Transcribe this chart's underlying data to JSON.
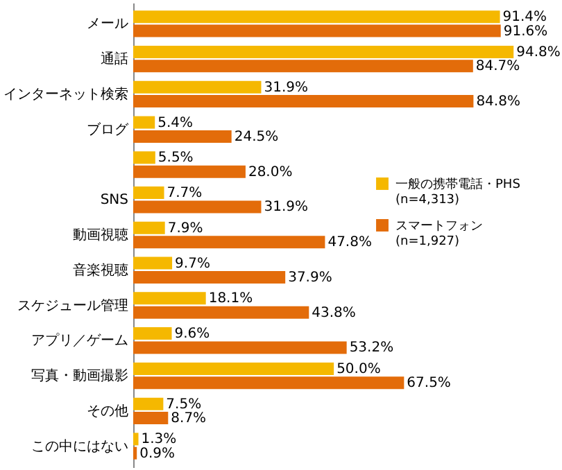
{
  "chart_data": {
    "type": "bar",
    "orientation": "horizontal",
    "categories": [
      "メール",
      "通話",
      "インターネット検索",
      "ブログ",
      null,
      "SNS",
      "動画視聴",
      "音楽視聴",
      "スケジュール管理",
      "アプリ／ゲーム",
      "写真・動画撮影",
      "その他",
      "この中にはない"
    ],
    "series": [
      {
        "name": "一般の携帯電話・PHS\n(n=4,313)",
        "color": "#f5b800",
        "values": [
          91.4,
          94.8,
          31.9,
          5.4,
          5.5,
          7.7,
          7.9,
          9.7,
          18.1,
          9.6,
          50.0,
          7.5,
          1.3
        ],
        "value_labels": [
          "91.4%",
          "94.8%",
          "31.9%",
          "5.4%",
          "5.5%",
          "7.7%",
          "7.9%",
          "9.7%",
          "18.1%",
          "9.6%",
          "50.0%",
          "7.5%",
          "1.3%"
        ]
      },
      {
        "name": "スマートフォン\n(n=1,927)",
        "color": "#e36c0a",
        "values": [
          91.6,
          84.7,
          84.8,
          24.5,
          28.0,
          31.9,
          47.8,
          37.9,
          43.8,
          53.2,
          67.5,
          8.7,
          0.9
        ],
        "value_labels": [
          "91.6%",
          "84.7%",
          "84.8%",
          "24.5%",
          "28.0%",
          "31.9%",
          "47.8%",
          "37.9%",
          "43.8%",
          "53.2%",
          "67.5%",
          "8.7%",
          "0.9%"
        ]
      }
    ],
    "legend": "right",
    "grid": false
  }
}
